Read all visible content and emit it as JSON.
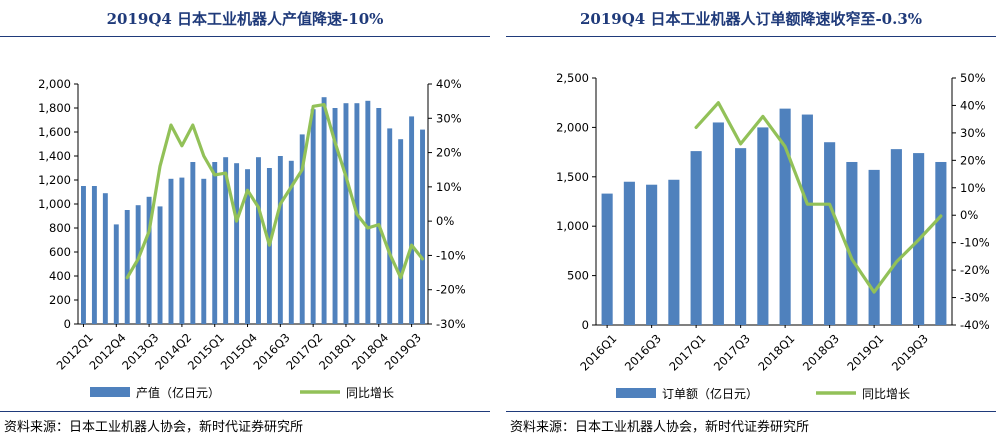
{
  "chart_data": [
    {
      "type": "bar",
      "title": "2019Q4 日本工业机器人产值降速-10%",
      "categories": [
        "2012Q1",
        "2012Q2",
        "2012Q3",
        "2012Q4",
        "2013Q1",
        "2013Q2",
        "2013Q3",
        "2013Q4",
        "2014Q1",
        "2014Q2",
        "2014Q3",
        "2014Q4",
        "2015Q1",
        "2015Q2",
        "2015Q3",
        "2015Q4",
        "2016Q1",
        "2016Q2",
        "2016Q3",
        "2016Q4",
        "2017Q1",
        "2017Q2",
        "2017Q3",
        "2017Q4",
        "2018Q1",
        "2018Q2",
        "2018Q3",
        "2018Q4",
        "2019Q1",
        "2019Q2",
        "2019Q3",
        "2019Q4"
      ],
      "tick_labels": [
        "2012Q1",
        "2012Q4",
        "2013Q3",
        "2014Q2",
        "2015Q1",
        "2015Q4",
        "2016Q3",
        "2017Q2",
        "2018Q1",
        "2018Q4",
        "2019Q3"
      ],
      "tick_every": 3,
      "series": [
        {
          "name": "产值（亿日元）",
          "kind": "bar",
          "axis": "left",
          "color": "#4f81bd",
          "values": [
            1150,
            1150,
            1090,
            830,
            950,
            990,
            1060,
            980,
            1210,
            1220,
            1350,
            1210,
            1350,
            1390,
            1340,
            1290,
            1390,
            1300,
            1400,
            1360,
            1580,
            1790,
            1890,
            1800,
            1840,
            1840,
            1860,
            1800,
            1630,
            1540,
            1730,
            1620
          ]
        },
        {
          "name": "同比增长",
          "kind": "line",
          "axis": "right",
          "color": "#92c158",
          "values": [
            null,
            null,
            null,
            null,
            -16.5,
            -11,
            -3,
            16,
            28,
            22,
            28,
            19,
            13.5,
            14,
            0,
            9,
            4,
            -7,
            5,
            10,
            15,
            33.5,
            34,
            23,
            13,
            2,
            -2,
            -1,
            -9.5,
            -16.5,
            -7,
            -11
          ]
        }
      ],
      "ylim": [
        0,
        2000
      ],
      "yticks": [
        0,
        200,
        400,
        600,
        800,
        1000,
        1200,
        1400,
        1600,
        1800,
        2000
      ],
      "y2lim": [
        -30,
        40
      ],
      "y2ticks": [
        -30,
        -20,
        -10,
        0,
        10,
        20,
        30,
        40
      ],
      "legend": "bottom"
    },
    {
      "type": "bar",
      "title": "2019Q4 日本工业机器人订单额降速收窄至-0.3%",
      "categories": [
        "2016Q1",
        "2016Q2",
        "2016Q3",
        "2016Q4",
        "2017Q1",
        "2017Q2",
        "2017Q3",
        "2017Q4",
        "2018Q1",
        "2018Q2",
        "2018Q3",
        "2018Q4",
        "2019Q1",
        "2019Q2",
        "2019Q3",
        "2019Q4"
      ],
      "tick_labels": [
        "2016Q1",
        "2016Q3",
        "2017Q1",
        "2017Q3",
        "2018Q1",
        "2018Q3",
        "2019Q1",
        "2019Q3"
      ],
      "tick_every": 2,
      "series": [
        {
          "name": "订单额（亿日元）",
          "kind": "bar",
          "axis": "left",
          "color": "#4f81bd",
          "values": [
            1330,
            1450,
            1420,
            1470,
            1760,
            2050,
            1790,
            2000,
            2190,
            2130,
            1850,
            1650,
            1570,
            1780,
            1740,
            1650
          ]
        },
        {
          "name": "同比增长",
          "kind": "line",
          "axis": "right",
          "color": "#92c158",
          "values": [
            null,
            null,
            null,
            null,
            32,
            41,
            26,
            36,
            25,
            4,
            4,
            -16,
            -28,
            -17,
            -9,
            -0.3
          ]
        }
      ],
      "ylim": [
        0,
        2500
      ],
      "yticks": [
        0,
        500,
        1000,
        1500,
        2000,
        2500
      ],
      "y2lim": [
        -40,
        50
      ],
      "y2ticks": [
        -40,
        -30,
        -20,
        -10,
        0,
        10,
        20,
        30,
        40,
        50
      ],
      "legend": "bottom"
    }
  ],
  "footer": {
    "left_source": "资料来源：日本工业机器人协会，新时代证券研究所",
    "right_source": "资料来源：日本工业机器人协会，新时代证券研究所"
  }
}
